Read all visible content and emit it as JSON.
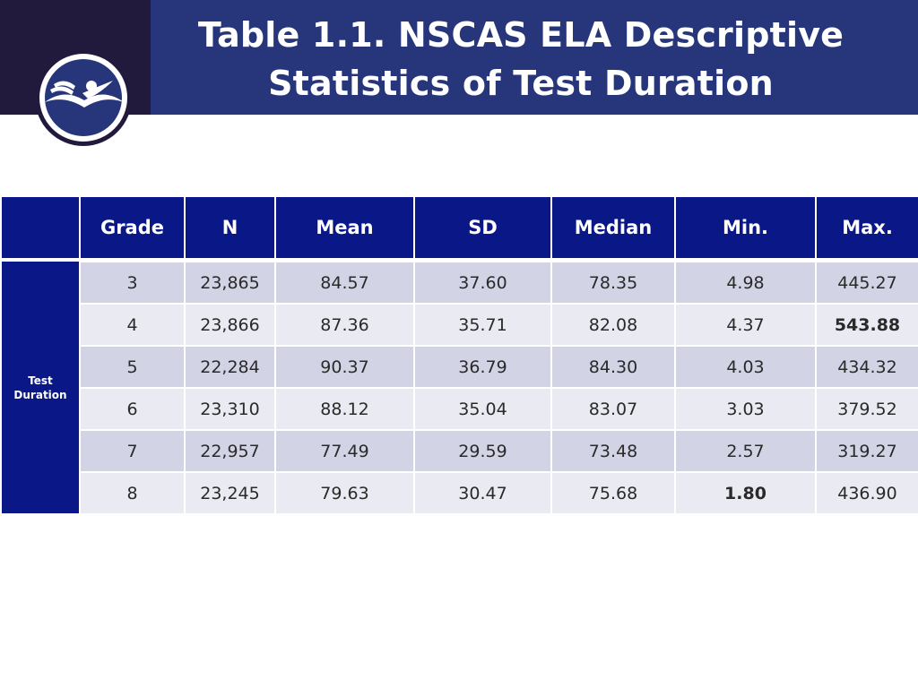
{
  "title": {
    "line1": "Table 1.1. NSCAS ELA Descriptive",
    "line2": "Statistics of Test Duration"
  },
  "logo": {
    "icon": "book-bird-emblem-icon",
    "colors": {
      "dark": "#221a3c",
      "ring": "#ffffff",
      "fill": "#27367a"
    }
  },
  "colors": {
    "banner": "#27367a",
    "header": "#0a1787",
    "row_odd": "#d2d4e5",
    "row_even": "#e9eaf2"
  },
  "table": {
    "row_header": {
      "line1": "Test",
      "line2": "Duration"
    },
    "columns": [
      "Grade",
      "N",
      "Mean",
      "SD",
      "Median",
      "Min.",
      "Max."
    ],
    "rows": [
      [
        "3",
        "23,865",
        "84.57",
        "37.60",
        "78.35",
        "4.98",
        "445.27"
      ],
      [
        "4",
        "23,866",
        "87.36",
        "35.71",
        "82.08",
        "4.37",
        "543.88"
      ],
      [
        "5",
        "22,284",
        "90.37",
        "36.79",
        "84.30",
        "4.03",
        "434.32"
      ],
      [
        "6",
        "23,310",
        "88.12",
        "35.04",
        "83.07",
        "3.03",
        "379.52"
      ],
      [
        "7",
        "22,957",
        "77.49",
        "29.59",
        "73.48",
        "2.57",
        "319.27"
      ],
      [
        "8",
        "23,245",
        "79.63",
        "30.47",
        "75.68",
        "1.80",
        "436.90"
      ]
    ]
  }
}
